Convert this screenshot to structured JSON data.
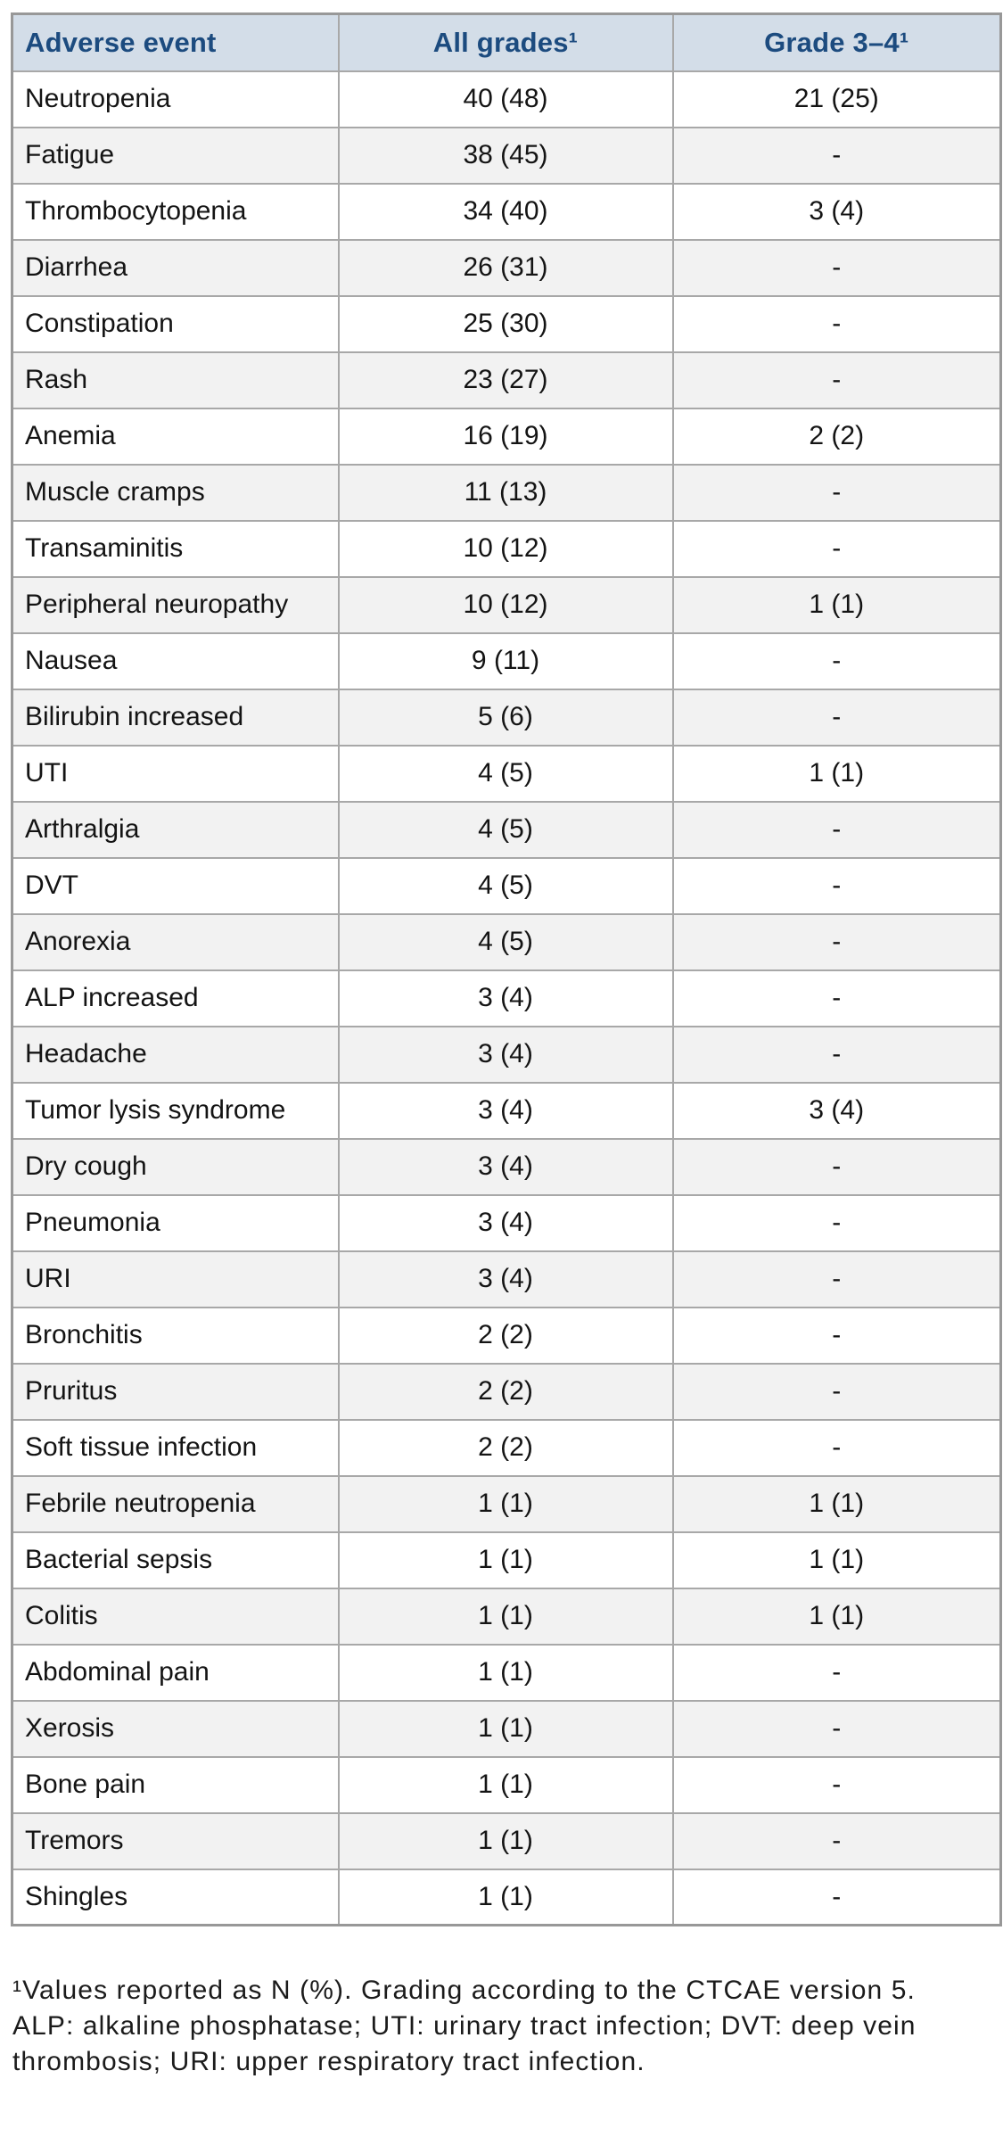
{
  "chart_data": {
    "type": "table",
    "title": "",
    "columns": [
      "Adverse event",
      "All grades¹",
      "Grade 3–4¹"
    ],
    "rows": [
      [
        "Neutropenia",
        "40 (48)",
        "21 (25)"
      ],
      [
        "Fatigue",
        "38 (45)",
        "-"
      ],
      [
        "Thrombocytopenia",
        "34 (40)",
        "3 (4)"
      ],
      [
        "Diarrhea",
        "26 (31)",
        "-"
      ],
      [
        "Constipation",
        "25 (30)",
        "-"
      ],
      [
        "Rash",
        "23 (27)",
        "-"
      ],
      [
        "Anemia",
        "16 (19)",
        "2 (2)"
      ],
      [
        "Muscle cramps",
        "11 (13)",
        "-"
      ],
      [
        "Transaminitis",
        "10 (12)",
        "-"
      ],
      [
        "Peripheral neuropathy",
        "10 (12)",
        "1 (1)"
      ],
      [
        "Nausea",
        "9 (11)",
        "-"
      ],
      [
        "Bilirubin increased",
        "5 (6)",
        "-"
      ],
      [
        "UTI",
        "4 (5)",
        "1 (1)"
      ],
      [
        "Arthralgia",
        "4 (5)",
        "-"
      ],
      [
        "DVT",
        "4 (5)",
        "-"
      ],
      [
        "Anorexia",
        "4 (5)",
        "-"
      ],
      [
        "ALP increased",
        "3 (4)",
        "-"
      ],
      [
        "Headache",
        "3 (4)",
        "-"
      ],
      [
        "Tumor lysis syndrome",
        "3 (4)",
        "3 (4)"
      ],
      [
        "Dry cough",
        "3 (4)",
        "-"
      ],
      [
        "Pneumonia",
        "3 (4)",
        "-"
      ],
      [
        "URI",
        "3 (4)",
        "-"
      ],
      [
        "Bronchitis",
        "2 (2)",
        "-"
      ],
      [
        "Pruritus",
        "2 (2)",
        "-"
      ],
      [
        "Soft tissue infection",
        "2 (2)",
        "-"
      ],
      [
        "Febrile neutropenia",
        "1 (1)",
        "1 (1)"
      ],
      [
        "Bacterial sepsis",
        "1 (1)",
        "1 (1)"
      ],
      [
        "Colitis",
        "1 (1)",
        "1 (1)"
      ],
      [
        "Abdominal pain",
        "1 (1)",
        "-"
      ],
      [
        "Xerosis",
        "1 (1)",
        "-"
      ],
      [
        "Bone pain",
        "1 (1)",
        "-"
      ],
      [
        "Tremors",
        "1 (1)",
        "-"
      ],
      [
        "Shingles",
        "1 (1)",
        "-"
      ]
    ],
    "layout": {
      "grid": true,
      "striped_rows": true,
      "column_alignment": [
        "left",
        "center",
        "center"
      ]
    }
  },
  "footnote": {
    "lines": [
      "¹Values reported as N (%). Grading according to the CTCAE version 5.",
      "ALP: alkaline phosphatase; UTI: urinary tract infection; DVT: deep vein",
      "thrombosis; URI: upper respiratory tract infection."
    ]
  },
  "colors": {
    "header_bg": "#d3dde8",
    "header_text": "#1c4b7f",
    "row_bg": "#ffffff",
    "row_alt_bg": "#f2f2f2",
    "border": "#a8a8a8",
    "body_text": "#141414"
  }
}
